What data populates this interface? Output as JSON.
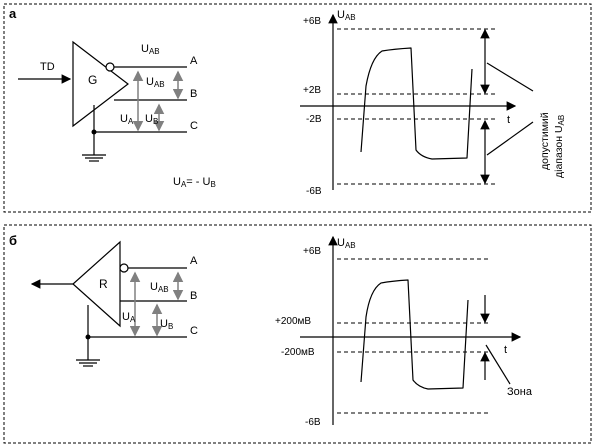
{
  "panel_a": {
    "label": "а",
    "gate_label": "G",
    "input_label": "TD",
    "terminal_a": "A",
    "terminal_b": "B",
    "terminal_c": "C",
    "uab_top": {
      "base": "U",
      "sub": "AB"
    },
    "uab_mid": {
      "base": "U",
      "sub": "AB"
    },
    "ua": {
      "base": "U",
      "sub": "A"
    },
    "ub": {
      "base": "U",
      "sub": "B"
    },
    "formula": {
      "u1": "U",
      "s1": "A",
      "mid": "= - U",
      "s2": "B"
    },
    "chart": {
      "y_axis": {
        "base": "U",
        "sub": "AB"
      },
      "t_label": "t",
      "levels": [
        "+6В",
        "+2В",
        "-2В",
        "-6В"
      ],
      "side_label_line1": "допустимий",
      "side_label_line2": {
        "base": "діапазон U",
        "sub": "AB"
      }
    }
  },
  "panel_b": {
    "label": "б",
    "gate_label": "R",
    "terminal_a": "A",
    "terminal_b": "B",
    "terminal_c": "C",
    "uab": {
      "base": "U",
      "sub": "AB"
    },
    "ua": {
      "base": "U",
      "sub": "A"
    },
    "ub": {
      "base": "U",
      "sub": "B"
    },
    "chart": {
      "y_axis": {
        "base": "U",
        "sub": "AB"
      },
      "t_label": "t",
      "levels": [
        "+6В",
        "+200мВ",
        "-200мВ",
        "-6В"
      ],
      "zone_label": "Зона"
    }
  }
}
